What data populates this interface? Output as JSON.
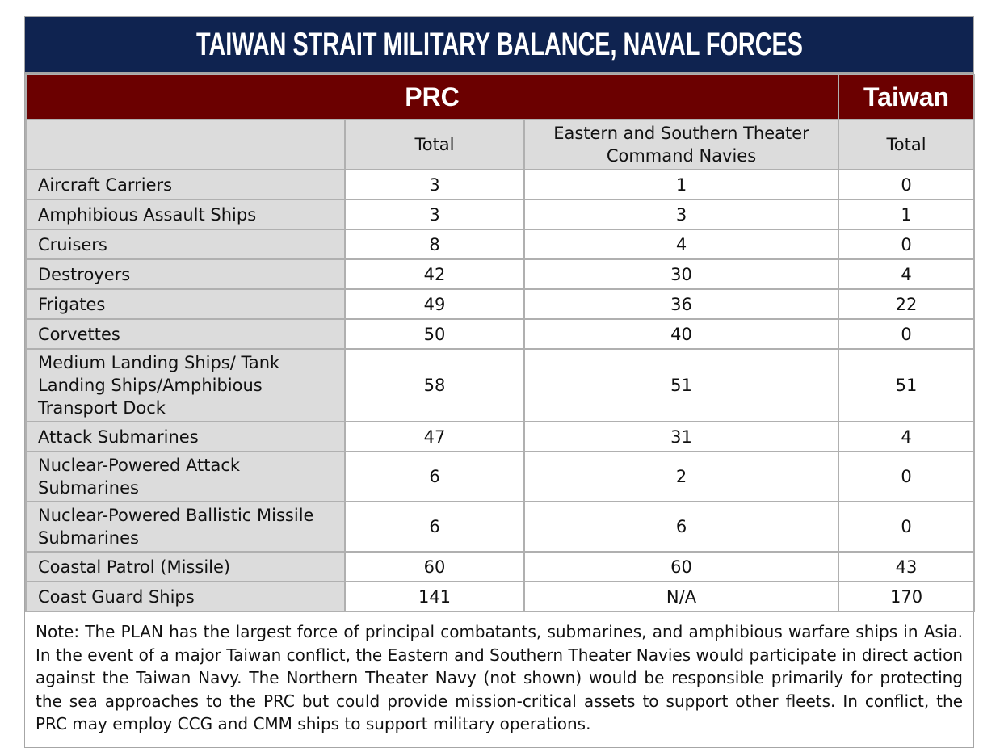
{
  "title": "TAIWAN STRAIT MILITARY BALANCE, NAVAL FORCES",
  "groups": [
    "PRC",
    "Taiwan"
  ],
  "columns": [
    "Total",
    "Eastern and Southern Theater Command Navies",
    "Total"
  ],
  "rows": [
    [
      "Aircraft Carriers",
      3,
      1,
      0
    ],
    [
      "Amphibious Assault Ships",
      3,
      3,
      1
    ],
    [
      "Cruisers",
      8,
      4,
      0
    ],
    [
      "Destroyers",
      42,
      30,
      4
    ],
    [
      "Frigates",
      49,
      36,
      22
    ],
    [
      "Corvettes",
      50,
      40,
      0
    ],
    [
      "Medium Landing Ships/ Tank Landing Ships/Amphibious Transport Dock",
      58,
      51,
      51
    ],
    [
      "Attack Submarines",
      47,
      31,
      4
    ],
    [
      "Nuclear-Powered Attack Submarines",
      6,
      2,
      0
    ],
    [
      "Nuclear-Powered Ballistic Missile Submarines",
      6,
      6,
      0
    ],
    [
      "Coastal Patrol (Missile)",
      60,
      60,
      43
    ],
    [
      "Coast Guard Ships",
      141,
      "N/A",
      170
    ]
  ],
  "note": "Note: The PLAN has the largest force of principal combatants, submarines, and amphibious warfare ships in Asia. In the event of a major Taiwan conflict, the Eastern and Southern Theater Navies would participate in direct action against the Taiwan Navy. The Northern Theater Navy (not shown) would be responsible primarily for protecting the sea approaches to the PRC but could provide mission-critical assets to support other fleets. In conflict, the PRC may employ CCG and CMM ships to support military operations."
}
